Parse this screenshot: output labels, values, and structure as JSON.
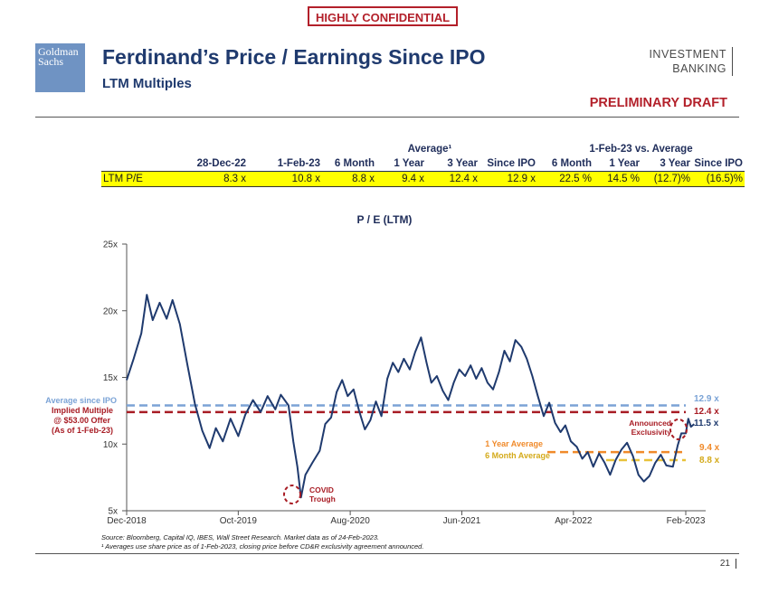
{
  "header": {
    "confidential": "HIGHLY CONFIDENTIAL",
    "logo_line1": "Goldman",
    "logo_line2": "Sachs",
    "title": "Ferdinand’s Price / Earnings Since IPO",
    "subtitle": "LTM Multiples",
    "ib_line1": "INVESTMENT",
    "ib_line2": "BANKING",
    "draft": "PRELIMINARY DRAFT"
  },
  "table": {
    "group_average": "Average¹",
    "group_vs": "1-Feb-23 vs. Average",
    "columns": [
      "28-Dec-22",
      "1-Feb-23",
      "6 Month",
      "1 Year",
      "3 Year",
      "Since IPO",
      "6 Month",
      "1 Year",
      "3 Year",
      "Since IPO"
    ],
    "row_label": "LTM P/E",
    "row_values": [
      "8.3 x",
      "10.8 x",
      "8.8 x",
      "9.4 x",
      "12.4 x",
      "12.9 x",
      "22.5 %",
      "14.5 %",
      "(12.7)%",
      "(16.5)%"
    ]
  },
  "chart_data": {
    "type": "line",
    "title": "P / E (LTM)",
    "xlabel": "",
    "ylabel": "",
    "ylim": [
      5,
      25
    ],
    "ytick_labels": [
      "5x",
      "10x",
      "15x",
      "20x",
      "25x"
    ],
    "xtick_labels": [
      "Dec-2018",
      "Oct-2019",
      "Aug-2020",
      "Jun-2021",
      "Apr-2022",
      "Feb-2023"
    ],
    "x_start": "2018-12",
    "x_end": "2023-02",
    "series": [
      {
        "color": "#1f3a6e",
        "points": [
          [
            "2018-12-01",
            14.8
          ],
          [
            "2018-12-20",
            16.4
          ],
          [
            "2019-01-10",
            18.3
          ],
          [
            "2019-01-25",
            21.2
          ],
          [
            "2019-02-10",
            19.3
          ],
          [
            "2019-03-01",
            20.6
          ],
          [
            "2019-03-20",
            19.4
          ],
          [
            "2019-04-05",
            20.8
          ],
          [
            "2019-04-25",
            19.0
          ],
          [
            "2019-05-15",
            16.0
          ],
          [
            "2019-06-05",
            13.0
          ],
          [
            "2019-06-25",
            11.0
          ],
          [
            "2019-07-15",
            9.7
          ],
          [
            "2019-08-01",
            11.2
          ],
          [
            "2019-08-20",
            10.2
          ],
          [
            "2019-09-10",
            11.9
          ],
          [
            "2019-10-01",
            10.6
          ],
          [
            "2019-10-20",
            12.2
          ],
          [
            "2019-11-10",
            13.3
          ],
          [
            "2019-12-01",
            12.4
          ],
          [
            "2019-12-20",
            13.6
          ],
          [
            "2020-01-10",
            12.6
          ],
          [
            "2020-01-25",
            13.7
          ],
          [
            "2020-02-15",
            12.9
          ],
          [
            "2020-02-28",
            10.2
          ],
          [
            "2020-03-10",
            8.3
          ],
          [
            "2020-03-20",
            6.0
          ],
          [
            "2020-04-01",
            7.7
          ],
          [
            "2020-04-20",
            8.6
          ],
          [
            "2020-05-10",
            9.5
          ],
          [
            "2020-05-25",
            11.5
          ],
          [
            "2020-06-10",
            12.0
          ],
          [
            "2020-06-25",
            13.9
          ],
          [
            "2020-07-10",
            14.8
          ],
          [
            "2020-07-25",
            13.6
          ],
          [
            "2020-08-10",
            14.1
          ],
          [
            "2020-08-25",
            12.5
          ],
          [
            "2020-09-10",
            11.1
          ],
          [
            "2020-09-25",
            11.8
          ],
          [
            "2020-10-10",
            13.2
          ],
          [
            "2020-10-25",
            12.1
          ],
          [
            "2020-11-10",
            14.9
          ],
          [
            "2020-11-25",
            16.1
          ],
          [
            "2020-12-10",
            15.4
          ],
          [
            "2020-12-25",
            16.4
          ],
          [
            "2021-01-10",
            15.6
          ],
          [
            "2021-01-25",
            16.9
          ],
          [
            "2021-02-10",
            18.0
          ],
          [
            "2021-02-25",
            16.1
          ],
          [
            "2021-03-10",
            14.6
          ],
          [
            "2021-03-25",
            15.1
          ],
          [
            "2021-04-10",
            14.0
          ],
          [
            "2021-04-25",
            13.3
          ],
          [
            "2021-05-10",
            14.6
          ],
          [
            "2021-05-25",
            15.6
          ],
          [
            "2021-06-10",
            15.1
          ],
          [
            "2021-06-25",
            15.9
          ],
          [
            "2021-07-10",
            14.9
          ],
          [
            "2021-07-25",
            15.7
          ],
          [
            "2021-08-10",
            14.6
          ],
          [
            "2021-08-25",
            14.1
          ],
          [
            "2021-09-10",
            15.4
          ],
          [
            "2021-09-25",
            17.0
          ],
          [
            "2021-10-10",
            16.2
          ],
          [
            "2021-10-25",
            17.8
          ],
          [
            "2021-11-10",
            17.3
          ],
          [
            "2021-11-25",
            16.4
          ],
          [
            "2021-12-10",
            15.1
          ],
          [
            "2021-12-25",
            13.6
          ],
          [
            "2022-01-10",
            12.1
          ],
          [
            "2022-01-25",
            13.1
          ],
          [
            "2022-02-10",
            11.6
          ],
          [
            "2022-02-25",
            10.9
          ],
          [
            "2022-03-10",
            11.4
          ],
          [
            "2022-03-25",
            10.2
          ],
          [
            "2022-04-10",
            9.8
          ],
          [
            "2022-04-25",
            8.9
          ],
          [
            "2022-05-10",
            9.4
          ],
          [
            "2022-05-25",
            8.3
          ],
          [
            "2022-06-10",
            9.3
          ],
          [
            "2022-06-25",
            8.6
          ],
          [
            "2022-07-10",
            7.7
          ],
          [
            "2022-07-25",
            8.8
          ],
          [
            "2022-08-10",
            9.6
          ],
          [
            "2022-08-25",
            10.1
          ],
          [
            "2022-09-10",
            9.1
          ],
          [
            "2022-09-25",
            7.7
          ],
          [
            "2022-10-10",
            7.2
          ],
          [
            "2022-10-25",
            7.6
          ],
          [
            "2022-11-10",
            8.6
          ],
          [
            "2022-11-25",
            9.2
          ],
          [
            "2022-12-10",
            8.4
          ],
          [
            "2022-12-28",
            8.3
          ],
          [
            "2023-01-10",
            9.9
          ],
          [
            "2023-01-20",
            10.8
          ],
          [
            "2023-02-01",
            10.8
          ],
          [
            "2023-02-08",
            11.9
          ],
          [
            "2023-02-15",
            11.3
          ],
          [
            "2023-02-24",
            11.5
          ]
        ]
      }
    ],
    "reference_lines": [
      {
        "label": "Average since IPO",
        "value": 12.9,
        "value_label": "12.9 x",
        "color": "#7ba3d6"
      },
      {
        "label": "Implied Multiple @ $53.00 Offer (As of 1-Feb-23)",
        "value": 12.4,
        "value_label": "12.4 x",
        "color": "#a81c24"
      },
      {
        "label": "1 Year Average",
        "value": 9.4,
        "value_label": "9.4 x",
        "color": "#f08a2a"
      },
      {
        "label": "6 Month Average",
        "value": 8.8,
        "value_label": "8.8 x",
        "color": "#e8c23a"
      }
    ],
    "current_label": "11.5 x",
    "annotations": {
      "covid_line1": "COVID",
      "covid_line2": "Trough",
      "announced_line1": "Announced",
      "announced_line2": "Exclusivity",
      "avg_ipo": "Average since IPO",
      "implied_1": "Implied Multiple",
      "implied_2": "@ $53.00 Offer",
      "implied_3": "(As of 1-Feb-23)",
      "one_year": "1 Year Average",
      "six_month": "6 Month Average"
    }
  },
  "footer": {
    "source": "Source: Bloomberg, Capital IQ, IBES, Wall Street Research. Market data as of 24-Feb-2023.",
    "footnote": "¹ Averages use share price as of 1-Feb-2023, closing price before CD&R exclusivity agreement announced.",
    "page_number": "21"
  }
}
